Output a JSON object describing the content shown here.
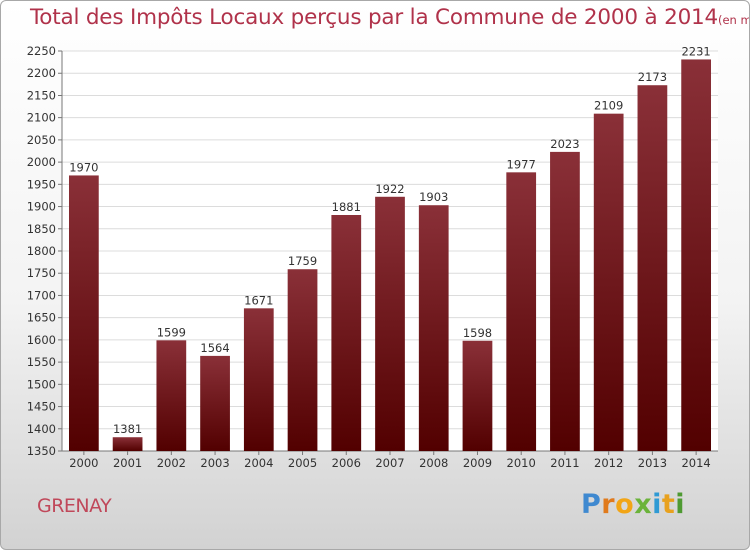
{
  "header": {
    "title": "Total des Impôts Locaux perçus par la Commune de 2000 à 2014",
    "unit": "(en milliers d'€)"
  },
  "footer": {
    "commune": "GRENAY",
    "logo": "Proxiti"
  },
  "colors": {
    "title": "#b0324a",
    "bar_top": "#8a3038",
    "bar_bottom": "#520000",
    "commune": "#c0485a"
  },
  "chart_data": {
    "type": "bar",
    "title": "Total des Impôts Locaux perçus par la Commune de 2000 à 2014",
    "xlabel": "",
    "ylabel": "",
    "categories": [
      "2000",
      "2001",
      "2002",
      "2003",
      "2004",
      "2005",
      "2006",
      "2007",
      "2008",
      "2009",
      "2010",
      "2011",
      "2012",
      "2013",
      "2014"
    ],
    "values": [
      1970,
      1381,
      1599,
      1564,
      1671,
      1759,
      1881,
      1922,
      1903,
      1598,
      1977,
      2023,
      2109,
      2173,
      2231
    ],
    "ylim": [
      1350,
      2250
    ],
    "yticks": [
      1350,
      1400,
      1450,
      1500,
      1550,
      1600,
      1650,
      1700,
      1750,
      1800,
      1850,
      1900,
      1950,
      2000,
      2050,
      2100,
      2150,
      2200,
      2250
    ],
    "grid": true,
    "legend": "none",
    "data_labels": true
  }
}
